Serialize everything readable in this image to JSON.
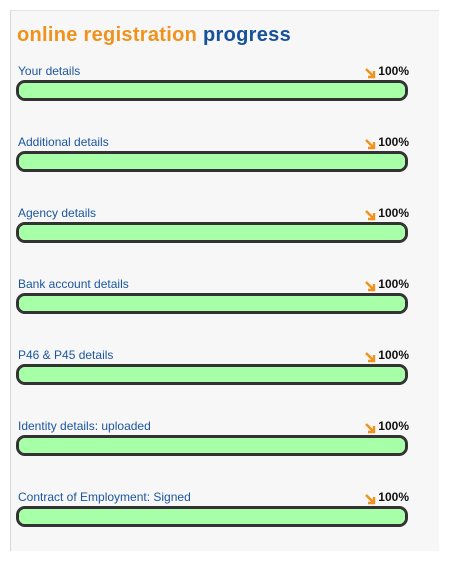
{
  "header": {
    "title_part1": "online registration",
    "title_part2": "progress"
  },
  "items": [
    {
      "label": "Your details",
      "percent": {
        "value": 100,
        "label": "100%"
      }
    },
    {
      "label": "Additional details",
      "percent": {
        "value": 100,
        "label": "100%"
      }
    },
    {
      "label": "Agency details",
      "percent": {
        "value": 100,
        "label": "100%"
      }
    },
    {
      "label": "Bank account details",
      "percent": {
        "value": 100,
        "label": "100%"
      }
    },
    {
      "label": "P46 & P45 details",
      "percent": {
        "value": 100,
        "label": "100%"
      }
    },
    {
      "label": "Identity details: uploaded",
      "percent": {
        "value": 100,
        "label": "100%"
      }
    },
    {
      "label": "Contract of Employment: Signed",
      "percent": {
        "value": 100,
        "label": "100%"
      }
    }
  ]
}
